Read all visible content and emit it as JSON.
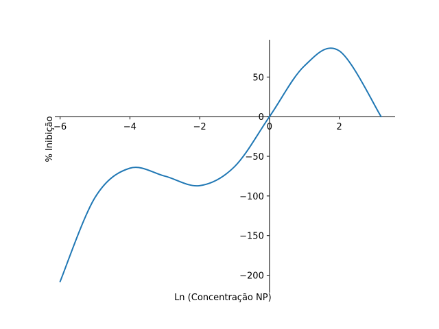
{
  "chart_data": {
    "type": "line",
    "title": "",
    "xlabel": "Ln (Concentração NP)",
    "ylabel": "% Inibição",
    "xlim": [
      -6.15,
      3.6
    ],
    "ylim": [
      -222,
      97
    ],
    "grid": false,
    "legend": "none",
    "spines": "centered-at-origin",
    "x_ticks": [
      -6,
      -4,
      -2,
      0,
      2
    ],
    "x_tick_labels": [
      "−6",
      "−4",
      "−2",
      "0",
      "2"
    ],
    "y_ticks": [
      50,
      0,
      -50,
      -100,
      -150,
      -200
    ],
    "y_tick_labels": [
      "50",
      "0",
      "−50",
      "−100",
      "−150",
      "−200"
    ],
    "series": [
      {
        "color": "#1f77b4",
        "curve": "cubic",
        "x": [
          -6,
          -5,
          -4,
          -3,
          -2,
          -1,
          0,
          1,
          2,
          3.2
        ],
        "y": [
          -208,
          -102,
          -65,
          -75,
          -87,
          -63,
          0,
          64,
          83,
          0
        ]
      }
    ]
  }
}
